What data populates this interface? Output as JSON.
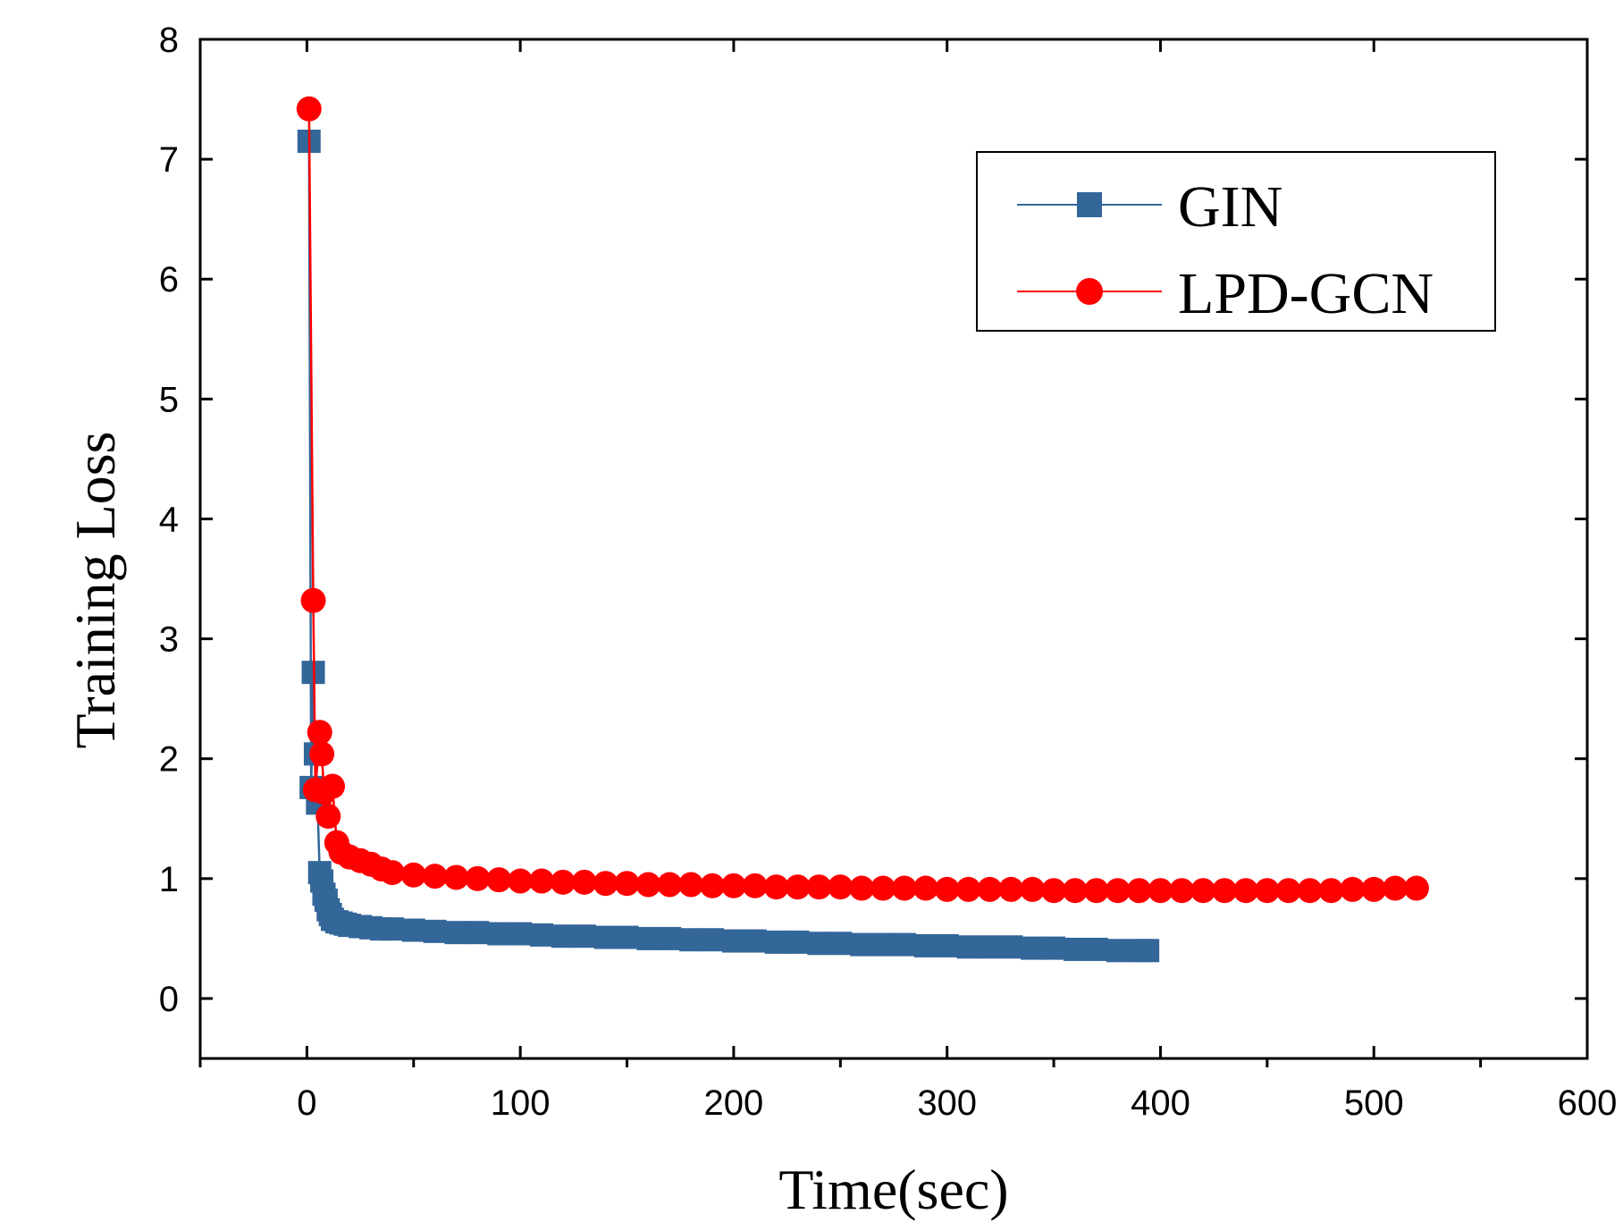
{
  "chart_data": {
    "type": "line",
    "title": "",
    "xlabel": "Time(sec)",
    "ylabel": "Training Loss",
    "xlim": [
      -50,
      600
    ],
    "ylim": [
      -0.5,
      8
    ],
    "xticks": [
      0,
      100,
      200,
      300,
      400,
      500,
      600
    ],
    "yticks": [
      0,
      1,
      2,
      3,
      4,
      5,
      6,
      7,
      8
    ],
    "grid": false,
    "legend_position": "top-right",
    "series": [
      {
        "name": "GIN",
        "color": "#336699",
        "marker": "square",
        "x": [
          1,
          2,
          3,
          4,
          5,
          6,
          7,
          8,
          9,
          10,
          11,
          12,
          14,
          16,
          18,
          20,
          25,
          30,
          35,
          40,
          50,
          60,
          70,
          80,
          90,
          100,
          110,
          120,
          130,
          140,
          150,
          160,
          170,
          180,
          190,
          200,
          210,
          220,
          230,
          240,
          250,
          260,
          270,
          280,
          290,
          300,
          310,
          320,
          330,
          340,
          350,
          360,
          370,
          380,
          390,
          394
        ],
        "y": [
          7.15,
          1.76,
          2.72,
          2.04,
          1.63,
          1.05,
          0.98,
          0.87,
          0.82,
          0.74,
          0.7,
          0.66,
          0.64,
          0.63,
          0.62,
          0.61,
          0.6,
          0.59,
          0.58,
          0.58,
          0.57,
          0.56,
          0.55,
          0.55,
          0.54,
          0.54,
          0.53,
          0.52,
          0.52,
          0.51,
          0.51,
          0.5,
          0.5,
          0.49,
          0.49,
          0.48,
          0.48,
          0.47,
          0.47,
          0.46,
          0.46,
          0.45,
          0.45,
          0.45,
          0.44,
          0.44,
          0.43,
          0.43,
          0.43,
          0.42,
          0.42,
          0.41,
          0.41,
          0.4,
          0.4,
          0.4
        ]
      },
      {
        "name": "LPD-GCN",
        "color": "#ff0000",
        "marker": "circle",
        "x": [
          1,
          3,
          4,
          6,
          7,
          8,
          10,
          12,
          14,
          16,
          20,
          25,
          30,
          35,
          40,
          50,
          60,
          70,
          80,
          90,
          100,
          110,
          120,
          130,
          140,
          150,
          160,
          170,
          180,
          190,
          200,
          210,
          220,
          230,
          240,
          250,
          260,
          270,
          280,
          290,
          300,
          310,
          320,
          330,
          340,
          350,
          360,
          370,
          380,
          390,
          400,
          410,
          420,
          430,
          440,
          450,
          460,
          470,
          480,
          490,
          500,
          510,
          520
        ],
        "y": [
          7.42,
          3.32,
          1.74,
          2.22,
          2.04,
          1.72,
          1.52,
          1.77,
          1.3,
          1.22,
          1.18,
          1.15,
          1.12,
          1.08,
          1.05,
          1.03,
          1.02,
          1.01,
          1.0,
          0.99,
          0.98,
          0.98,
          0.97,
          0.97,
          0.96,
          0.96,
          0.95,
          0.95,
          0.95,
          0.94,
          0.94,
          0.94,
          0.93,
          0.93,
          0.93,
          0.93,
          0.92,
          0.92,
          0.92,
          0.92,
          0.91,
          0.91,
          0.91,
          0.91,
          0.91,
          0.9,
          0.9,
          0.9,
          0.9,
          0.9,
          0.9,
          0.9,
          0.9,
          0.9,
          0.9,
          0.9,
          0.9,
          0.9,
          0.9,
          0.91,
          0.91,
          0.92,
          0.92
        ]
      }
    ]
  }
}
